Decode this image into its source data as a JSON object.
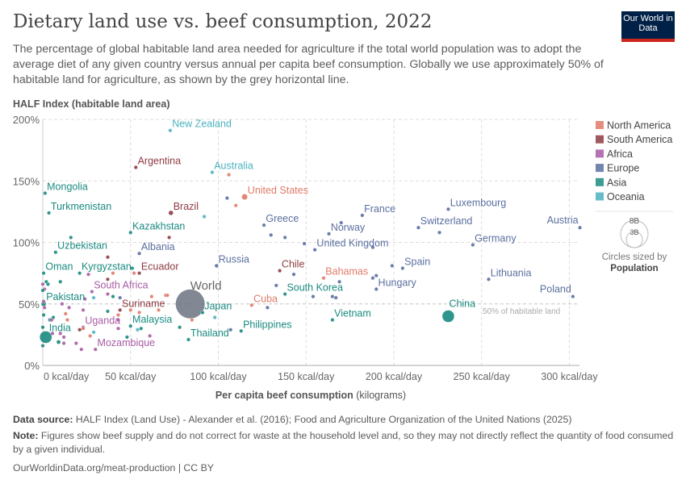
{
  "header": {
    "title": "Dietary land use vs. beef consumption, 2022",
    "subtitle": "The percentage of global habitable land area needed for agriculture if the total world population was to adopt the average diet of any given country versus annual per capita beef consumption. Globally we use approximately 50% of habitable land for agriculture, as shown by the grey horizontal line.",
    "logo": "Our World in Data"
  },
  "footer": {
    "source_label": "Data source:",
    "source": "HALF Index (Land Use) - Alexander et al. (2016); Food and Agriculture Organization of the United Nations (2025)",
    "note_label": "Note:",
    "note": "Figures show beef supply and do not correct for waste at the household level and, so they may not directly reflect the quantity of food consumed by a given individual.",
    "url": "OurWorldinData.org/meat-production | CC BY"
  },
  "chart_data": {
    "type": "scatter",
    "title": "Dietary land use vs. beef consumption, 2022",
    "ylabel": "HALF Index (habitable land area)",
    "xlabel_bold": "Per capita beef consumption",
    "xlabel_unit": "(kilograms)",
    "xlim": [
      0,
      307
    ],
    "ylim": [
      0,
      200
    ],
    "x_ticks": [
      {
        "v": 0,
        "label": "0 kcal/day"
      },
      {
        "v": 50,
        "label": "50 kcal/day"
      },
      {
        "v": 100,
        "label": "100 kcal/day"
      },
      {
        "v": 150,
        "label": "150 kcal/day"
      },
      {
        "v": 200,
        "label": "200 kcal/day"
      },
      {
        "v": 250,
        "label": "250 kcal/day"
      },
      {
        "v": 300,
        "label": "300 kcal/day"
      }
    ],
    "y_ticks": [
      {
        "v": 0,
        "label": "0%"
      },
      {
        "v": 50,
        "label": "50%"
      },
      {
        "v": 100,
        "label": "100%"
      },
      {
        "v": 150,
        "label": "150%"
      },
      {
        "v": 200,
        "label": "200%"
      }
    ],
    "grid": true,
    "reference_line": {
      "y": 50,
      "label": "50% of habitable land"
    },
    "legend": {
      "placement": "right",
      "regions": [
        {
          "name": "North America",
          "color": "#e07a67"
        },
        {
          "name": "South America",
          "color": "#8e3b42"
        },
        {
          "name": "Africa",
          "color": "#a85ba4"
        },
        {
          "name": "Europe",
          "color": "#5a6f9f"
        },
        {
          "name": "Asia",
          "color": "#1a8a80"
        },
        {
          "name": "Oceania",
          "color": "#4bb2c0"
        }
      ],
      "size_legend": {
        "large": "8B",
        "small": "3B",
        "caption": "Circles sized by",
        "caption_bold": "Population"
      }
    },
    "points": [
      {
        "name": "World",
        "region": "World",
        "x": 84,
        "y": 50,
        "pop": 8000,
        "labeled": true
      },
      {
        "name": "New Zealand",
        "region": "Oceania",
        "x": 72.6,
        "y": 191,
        "pop": 5,
        "labeled": true
      },
      {
        "name": "Argentina",
        "region": "South America",
        "x": 53,
        "y": 161,
        "pop": 46,
        "labeled": true
      },
      {
        "name": "Australia",
        "region": "Oceania",
        "x": 96.5,
        "y": 157,
        "pop": 26,
        "labeled": true
      },
      {
        "name": "Brazil",
        "region": "South America",
        "x": 73,
        "y": 124,
        "pop": 215,
        "labeled": true
      },
      {
        "name": "Mongolia",
        "region": "Asia",
        "x": 1.3,
        "y": 140,
        "pop": 3,
        "labeled": true
      },
      {
        "name": "Turkmenistan",
        "region": "Asia",
        "x": 3.5,
        "y": 124,
        "pop": 6,
        "labeled": true
      },
      {
        "name": "Kazakhstan",
        "region": "Asia",
        "x": 50,
        "y": 108,
        "pop": 19,
        "labeled": true
      },
      {
        "name": "Uzbekistan",
        "region": "Asia",
        "x": 7.3,
        "y": 92,
        "pop": 35,
        "labeled": true
      },
      {
        "name": "Albania",
        "region": "Europe",
        "x": 55,
        "y": 91,
        "pop": 3,
        "labeled": true
      },
      {
        "name": "Russia",
        "region": "Europe",
        "x": 99,
        "y": 81,
        "pop": 144,
        "labeled": true
      },
      {
        "name": "Oman",
        "region": "Asia",
        "x": 0.5,
        "y": 75,
        "pop": 5,
        "labeled": true
      },
      {
        "name": "Kyrgyzstan",
        "region": "Asia",
        "x": 21,
        "y": 75,
        "pop": 7,
        "labeled": true
      },
      {
        "name": "Ecuador",
        "region": "South America",
        "x": 55,
        "y": 75,
        "pop": 18,
        "labeled": true
      },
      {
        "name": "South Africa",
        "region": "Africa",
        "x": 28,
        "y": 60,
        "pop": 60,
        "labeled": true
      },
      {
        "name": "Pakistan",
        "region": "Asia",
        "x": 0.5,
        "y": 50,
        "pop": 240,
        "labeled": true
      },
      {
        "name": "Suriname",
        "region": "South America",
        "x": 44,
        "y": 45,
        "pop": 1,
        "labeled": true
      },
      {
        "name": "Japan",
        "region": "Asia",
        "x": 91,
        "y": 43,
        "pop": 124,
        "labeled": true
      },
      {
        "name": "Uganda",
        "region": "Africa",
        "x": 23,
        "y": 31,
        "pop": 47,
        "labeled": true
      },
      {
        "name": "Malaysia",
        "region": "Asia",
        "x": 50,
        "y": 32,
        "pop": 34,
        "labeled": true
      },
      {
        "name": "India",
        "region": "Asia",
        "x": 1.7,
        "y": 23,
        "pop": 1430,
        "labeled": true
      },
      {
        "name": "Thailand",
        "region": "Asia",
        "x": 83,
        "y": 21,
        "pop": 72,
        "labeled": true
      },
      {
        "name": "Mozambique",
        "region": "Africa",
        "x": 30,
        "y": 13,
        "pop": 33,
        "labeled": true
      },
      {
        "name": "United States",
        "region": "North America",
        "x": 115,
        "y": 137,
        "pop": 335,
        "labeled": true
      },
      {
        "name": "Greece",
        "region": "Europe",
        "x": 126,
        "y": 114,
        "pop": 10,
        "labeled": true
      },
      {
        "name": "Norway",
        "region": "Europe",
        "x": 163,
        "y": 107,
        "pop": 5,
        "labeled": true
      },
      {
        "name": "France",
        "region": "Europe",
        "x": 182,
        "y": 122,
        "pop": 68,
        "labeled": true
      },
      {
        "name": "Luxembourg",
        "region": "Europe",
        "x": 231,
        "y": 127,
        "pop": 1,
        "labeled": true
      },
      {
        "name": "Switzerland",
        "region": "Europe",
        "x": 214,
        "y": 112,
        "pop": 9,
        "labeled": true
      },
      {
        "name": "Austria",
        "region": "Europe",
        "x": 306,
        "y": 112,
        "pop": 9,
        "labeled": true
      },
      {
        "name": "United Kingdom",
        "region": "Europe",
        "x": 155,
        "y": 94,
        "pop": 67,
        "labeled": true
      },
      {
        "name": "Germany",
        "region": "Europe",
        "x": 245,
        "y": 98,
        "pop": 84,
        "labeled": true
      },
      {
        "name": "Spain",
        "region": "Europe",
        "x": 205,
        "y": 79,
        "pop": 48,
        "labeled": true
      },
      {
        "name": "Chile",
        "region": "South America",
        "x": 135,
        "y": 77,
        "pop": 19,
        "labeled": true
      },
      {
        "name": "Bahamas",
        "region": "North America",
        "x": 160,
        "y": 71,
        "pop": 1,
        "labeled": true
      },
      {
        "name": "Hungary",
        "region": "Europe",
        "x": 190,
        "y": 62,
        "pop": 10,
        "labeled": true
      },
      {
        "name": "Lithuania",
        "region": "Europe",
        "x": 254,
        "y": 70,
        "pop": 3,
        "labeled": true
      },
      {
        "name": "Poland",
        "region": "Europe",
        "x": 302,
        "y": 56,
        "pop": 37,
        "labeled": true
      },
      {
        "name": "South Korea",
        "region": "Asia",
        "x": 138,
        "y": 58,
        "pop": 52,
        "labeled": true
      },
      {
        "name": "Cuba",
        "region": "North America",
        "x": 119,
        "y": 49,
        "pop": 11,
        "labeled": true
      },
      {
        "name": "Vietnam",
        "region": "Asia",
        "x": 165,
        "y": 37,
        "pop": 99,
        "labeled": true
      },
      {
        "name": "China",
        "region": "Asia",
        "x": 231,
        "y": 40,
        "pop": 1410,
        "labeled": true
      },
      {
        "name": "Philippines",
        "region": "Asia",
        "x": 113,
        "y": 28,
        "pop": 115,
        "labeled": true
      },
      {
        "region": "Asia",
        "x": 16,
        "y": 104
      },
      {
        "region": "South America",
        "x": 37,
        "y": 88
      },
      {
        "region": "South America",
        "x": 72,
        "y": 104
      },
      {
        "region": "Oceania",
        "x": 92,
        "y": 121
      },
      {
        "region": "Europe",
        "x": 105,
        "y": 136
      },
      {
        "region": "North America",
        "x": 106,
        "y": 155
      },
      {
        "region": "North America",
        "x": 110,
        "y": 130
      },
      {
        "region": "Europe",
        "x": 130,
        "y": 106
      },
      {
        "region": "Europe",
        "x": 138,
        "y": 104
      },
      {
        "region": "Europe",
        "x": 149,
        "y": 99
      },
      {
        "region": "Europe",
        "x": 170,
        "y": 116
      },
      {
        "region": "Europe",
        "x": 188,
        "y": 96
      },
      {
        "region": "Europe",
        "x": 199,
        "y": 81
      },
      {
        "region": "Europe",
        "x": 226,
        "y": 108
      },
      {
        "region": "Europe",
        "x": 143,
        "y": 74
      },
      {
        "region": "Europe",
        "x": 133,
        "y": 65
      },
      {
        "region": "Europe",
        "x": 154,
        "y": 56
      },
      {
        "region": "Europe",
        "x": 165,
        "y": 56
      },
      {
        "region": "Europe",
        "x": 167,
        "y": 55
      },
      {
        "region": "Europe",
        "x": 169,
        "y": 68
      },
      {
        "region": "Europe",
        "x": 188,
        "y": 71
      },
      {
        "region": "Europe",
        "x": 190,
        "y": 73
      },
      {
        "region": "Europe",
        "x": 128,
        "y": 47
      },
      {
        "region": "Europe",
        "x": 107,
        "y": 29
      },
      {
        "region": "Asia",
        "x": 10,
        "y": 68
      },
      {
        "region": "Asia",
        "x": 51,
        "y": 79
      },
      {
        "region": "North America",
        "x": 52,
        "y": 75
      },
      {
        "region": "North America",
        "x": 40,
        "y": 75
      },
      {
        "region": "Africa",
        "x": 26,
        "y": 74
      },
      {
        "region": "South America",
        "x": 37,
        "y": 70
      },
      {
        "region": "Africa",
        "x": 37,
        "y": 58
      },
      {
        "region": "Asia",
        "x": 40,
        "y": 56
      },
      {
        "region": "Oceania",
        "x": 29,
        "y": 55
      },
      {
        "region": "Europe",
        "x": 44,
        "y": 55
      },
      {
        "region": "Africa",
        "x": 24,
        "y": 54
      },
      {
        "region": "North America",
        "x": 62,
        "y": 56
      },
      {
        "region": "North America",
        "x": 70,
        "y": 57
      },
      {
        "region": "North America",
        "x": 71,
        "y": 57
      },
      {
        "region": "Africa",
        "x": 11,
        "y": 50
      },
      {
        "region": "Africa",
        "x": 15,
        "y": 47
      },
      {
        "region": "North America",
        "x": 50,
        "y": 45
      },
      {
        "region": "North America",
        "x": 55,
        "y": 43
      },
      {
        "region": "North America",
        "x": 66,
        "y": 45
      },
      {
        "region": "Asia",
        "x": 37,
        "y": 44
      },
      {
        "region": "Africa",
        "x": 23,
        "y": 45
      },
      {
        "region": "North America",
        "x": 13,
        "y": 42
      },
      {
        "region": "North America",
        "x": 14,
        "y": 37
      },
      {
        "region": "Asia",
        "x": 6,
        "y": 39
      },
      {
        "region": "Asia",
        "x": 4,
        "y": 37
      },
      {
        "region": "Africa",
        "x": 43,
        "y": 37
      },
      {
        "region": "North America",
        "x": 43,
        "y": 41
      },
      {
        "region": "Oceania",
        "x": 54,
        "y": 29
      },
      {
        "region": "Asia",
        "x": 56,
        "y": 30
      },
      {
        "region": "Africa",
        "x": 43,
        "y": 30
      },
      {
        "region": "South America",
        "x": 21,
        "y": 29
      },
      {
        "region": "North America",
        "x": 23,
        "y": 30
      },
      {
        "region": "Africa",
        "x": 61,
        "y": 24
      },
      {
        "region": "Asia",
        "x": 48,
        "y": 23
      },
      {
        "region": "North America",
        "x": 27,
        "y": 24
      },
      {
        "region": "Oceania",
        "x": 29,
        "y": 27
      },
      {
        "region": "Africa",
        "x": 12,
        "y": 23
      },
      {
        "region": "Africa",
        "x": 10,
        "y": 26
      },
      {
        "region": "Asia",
        "x": 9,
        "y": 19,
        "pop": 170
      },
      {
        "region": "Africa",
        "x": 19,
        "y": 18
      },
      {
        "region": "Africa",
        "x": 22,
        "y": 13
      },
      {
        "region": "Africa",
        "x": 12,
        "y": 18
      },
      {
        "region": "Asia",
        "x": 0,
        "y": 16
      },
      {
        "region": "Asia",
        "x": 0,
        "y": 31
      },
      {
        "region": "Asia",
        "x": 78,
        "y": 31
      },
      {
        "region": "Oceania",
        "x": 98,
        "y": 39
      },
      {
        "region": "North America",
        "x": 85,
        "y": 37
      },
      {
        "region": "Africa",
        "x": 0,
        "y": 66
      },
      {
        "region": "Africa",
        "x": 1,
        "y": 62
      },
      {
        "region": "Africa",
        "x": 0.5,
        "y": 52
      },
      {
        "region": "Africa",
        "x": 1,
        "y": 47
      },
      {
        "region": "Asia",
        "x": 0.5,
        "y": 41
      },
      {
        "region": "Asia",
        "x": 2,
        "y": 68
      },
      {
        "region": "Asia",
        "x": 3,
        "y": 66
      },
      {
        "region": "Africa",
        "x": 5,
        "y": 37
      },
      {
        "region": "Africa",
        "x": 5.5,
        "y": 26
      },
      {
        "region": "Asia",
        "x": 0,
        "y": 61
      }
    ]
  }
}
